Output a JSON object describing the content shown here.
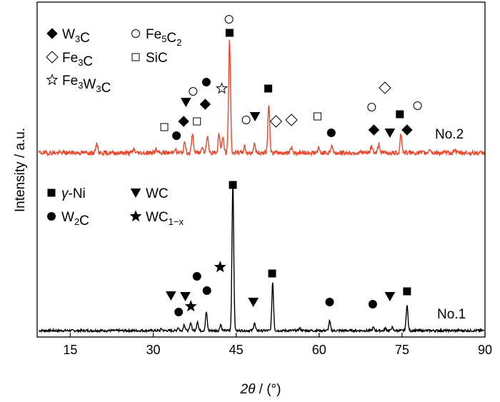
{
  "chart_data": {
    "type": "line",
    "xlabel_parts": {
      "var": "2θ",
      "unit": " / (°)"
    },
    "ylabel": "Intensity / a.u.",
    "xlim": [
      9,
      90
    ],
    "xticks": [
      15,
      30,
      45,
      60,
      75,
      90
    ],
    "xtick_labels": [
      "15",
      "30",
      "45",
      "60",
      "75",
      "90"
    ],
    "grid": false,
    "series": [
      {
        "name": "No.1",
        "color": "#000000",
        "baseline": 0,
        "peaks": [
          {
            "x": 31.5,
            "h": 2
          },
          {
            "x": 34.5,
            "h": 4
          },
          {
            "x": 35.6,
            "h": 8
          },
          {
            "x": 36.8,
            "h": 10
          },
          {
            "x": 38.0,
            "h": 12
          },
          {
            "x": 39.6,
            "h": 24
          },
          {
            "x": 42.2,
            "h": 8
          },
          {
            "x": 44.4,
            "h": 190
          },
          {
            "x": 48.3,
            "h": 10
          },
          {
            "x": 51.6,
            "h": 62
          },
          {
            "x": 56.5,
            "h": 3
          },
          {
            "x": 61.9,
            "h": 12
          },
          {
            "x": 69.8,
            "h": 4
          },
          {
            "x": 72.0,
            "h": 3
          },
          {
            "x": 73.2,
            "h": 4
          },
          {
            "x": 75.9,
            "h": 33
          }
        ]
      },
      {
        "name": "No.2",
        "color": "#e8472b",
        "baseline": 0,
        "peaks": [
          {
            "x": 19.8,
            "h": 13
          },
          {
            "x": 26.5,
            "h": 5
          },
          {
            "x": 30.5,
            "h": 4
          },
          {
            "x": 33.9,
            "h": 6
          },
          {
            "x": 35.7,
            "h": 14
          },
          {
            "x": 37.1,
            "h": 26
          },
          {
            "x": 38.9,
            "h": 10
          },
          {
            "x": 39.8,
            "h": 24
          },
          {
            "x": 41.9,
            "h": 26
          },
          {
            "x": 42.6,
            "h": 22
          },
          {
            "x": 43.8,
            "h": 155
          },
          {
            "x": 46.5,
            "h": 8
          },
          {
            "x": 48.3,
            "h": 12
          },
          {
            "x": 50.9,
            "h": 64
          },
          {
            "x": 55.0,
            "h": 8
          },
          {
            "x": 59.9,
            "h": 6
          },
          {
            "x": 62.3,
            "h": 10
          },
          {
            "x": 69.5,
            "h": 10
          },
          {
            "x": 70.8,
            "h": 12
          },
          {
            "x": 74.8,
            "h": 26
          },
          {
            "x": 80.0,
            "h": 6
          },
          {
            "x": 84.5,
            "h": 5
          }
        ]
      }
    ],
    "curve_labels": [
      "No.2",
      "No.1"
    ],
    "legend_top": [
      {
        "marker": "diamond-filled",
        "label": "W",
        "sub": "3",
        "after": "C",
        "after_sub": "",
        "tail": ""
      },
      {
        "marker": "circle-open",
        "label": "Fe",
        "sub": "5",
        "after": "C",
        "after_sub": "2",
        "tail": ""
      },
      {
        "marker": "diamond-open",
        "label": "Fe",
        "sub": "3",
        "after": "C",
        "after_sub": "",
        "tail": ""
      },
      {
        "marker": "square-open",
        "label": "SiC",
        "sub": "",
        "after": "",
        "after_sub": "",
        "tail": ""
      },
      {
        "marker": "star-open",
        "label": "Fe",
        "sub": "3",
        "after": "W",
        "after_sub": "3",
        "tail": "C"
      }
    ],
    "legend_bottom": [
      {
        "marker": "square-filled",
        "label": "γ",
        "sub": "",
        "after": "-Ni",
        "after_sub": "",
        "tail": ""
      },
      {
        "marker": "triangle-down-filled",
        "label": "WC",
        "sub": "",
        "after": "",
        "after_sub": "",
        "tail": ""
      },
      {
        "marker": "circle-filled",
        "label": "W",
        "sub": "2",
        "after": "C",
        "after_sub": "",
        "tail": ""
      },
      {
        "marker": "star-filled",
        "label": "WC",
        "sub": "1−x",
        "after": "",
        "after_sub": "",
        "tail": ""
      }
    ],
    "markers_top": [
      {
        "marker": "square-open",
        "x": 32.0
      },
      {
        "marker": "circle-filled",
        "x": 34.2
      },
      {
        "marker": "diamond-filled",
        "x": 35.5
      },
      {
        "marker": "triangle-down-filled",
        "x": 35.9
      },
      {
        "marker": "circle-open",
        "x": 37.2
      },
      {
        "marker": "square-open",
        "x": 37.9
      },
      {
        "marker": "diamond-filled",
        "x": 39.4
      },
      {
        "marker": "circle-filled",
        "x": 39.6
      },
      {
        "marker": "star-open",
        "x": 42.4
      },
      {
        "marker": "square-filled",
        "x": 43.8
      },
      {
        "marker": "circle-open",
        "x": 43.7
      },
      {
        "marker": "circle-open",
        "x": 46.8
      },
      {
        "marker": "triangle-down-filled",
        "x": 48.4
      },
      {
        "marker": "square-filled",
        "x": 50.8
      },
      {
        "marker": "diamond-open",
        "x": 52.2
      },
      {
        "marker": "diamond-open",
        "x": 55.0
      },
      {
        "marker": "square-open",
        "x": 59.7
      },
      {
        "marker": "circle-filled",
        "x": 62.2
      },
      {
        "marker": "circle-open",
        "x": 69.5
      },
      {
        "marker": "diamond-filled",
        "x": 69.9
      },
      {
        "marker": "diamond-open",
        "x": 71.9
      },
      {
        "marker": "triangle-down-filled",
        "x": 72.8
      },
      {
        "marker": "square-filled",
        "x": 74.6
      },
      {
        "marker": "diamond-filled",
        "x": 75.9
      },
      {
        "marker": "circle-open",
        "x": 77.8
      }
    ],
    "markers_bottom": [
      {
        "marker": "circle-filled",
        "x": 34.6
      },
      {
        "marker": "triangle-down-filled",
        "x": 33.2
      },
      {
        "marker": "triangle-down-filled",
        "x": 35.8
      },
      {
        "marker": "star-filled",
        "x": 36.8
      },
      {
        "marker": "circle-filled",
        "x": 37.9
      },
      {
        "marker": "circle-filled",
        "x": 39.7
      },
      {
        "marker": "star-filled",
        "x": 42.1
      },
      {
        "marker": "square-filled",
        "x": 44.4
      },
      {
        "marker": "triangle-down-filled",
        "x": 48.1
      },
      {
        "marker": "square-filled",
        "x": 51.5
      },
      {
        "marker": "circle-filled",
        "x": 61.9
      },
      {
        "marker": "circle-filled",
        "x": 69.7
      },
      {
        "marker": "triangle-down-filled",
        "x": 72.8
      },
      {
        "marker": "square-filled",
        "x": 75.9
      }
    ]
  }
}
